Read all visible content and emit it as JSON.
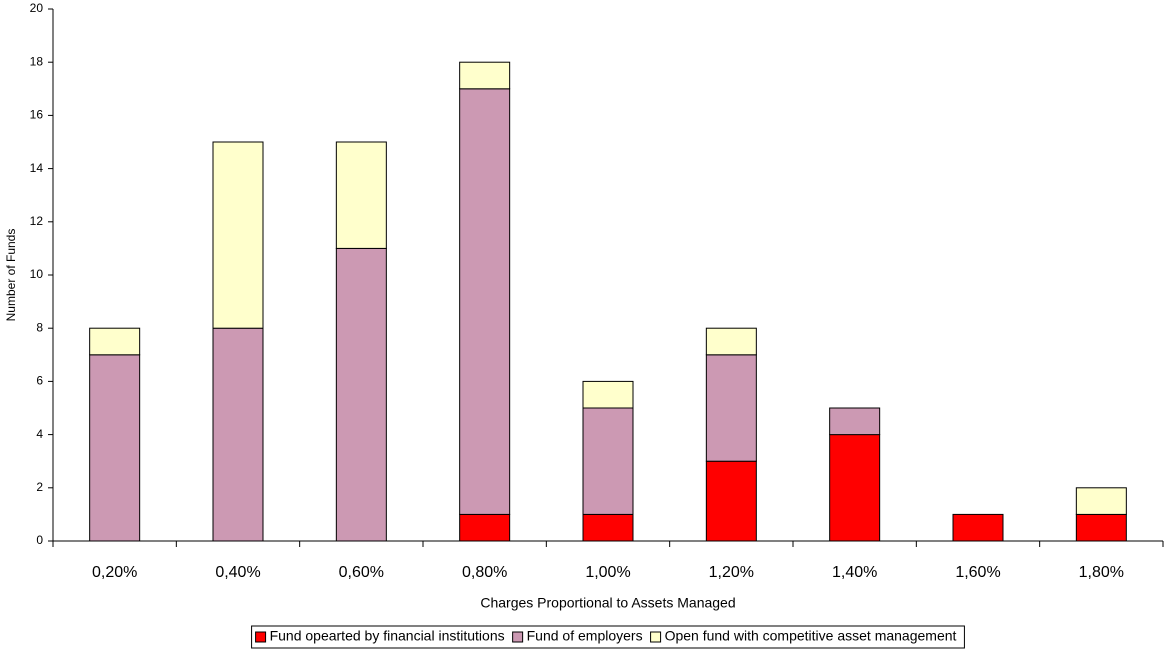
{
  "chart_data": {
    "type": "bar",
    "stacked": true,
    "xlabel": "Charges Proportional to Assets Managed",
    "ylabel": "Number of Funds",
    "categories": [
      "0,20%",
      "0,40%",
      "0,60%",
      "0,80%",
      "1,00%",
      "1,20%",
      "1,40%",
      "1,60%",
      "1,80%"
    ],
    "series": [
      {
        "name": "Fund opearted by financial institutions",
        "color": "#ff0000",
        "values": [
          0,
          0,
          0,
          1,
          1,
          3,
          4,
          1,
          1
        ]
      },
      {
        "name": "Fund of employers",
        "color": "#cc99b3",
        "values": [
          7,
          8,
          11,
          16,
          4,
          4,
          1,
          0,
          0
        ]
      },
      {
        "name": "Open fund with competitive asset management",
        "color": "#ffffcc",
        "values": [
          1,
          7,
          4,
          1,
          1,
          1,
          0,
          0,
          1
        ]
      }
    ],
    "ylim": [
      0,
      20
    ],
    "yticks": [
      0,
      2,
      4,
      6,
      8,
      10,
      12,
      14,
      16,
      18,
      20
    ]
  }
}
